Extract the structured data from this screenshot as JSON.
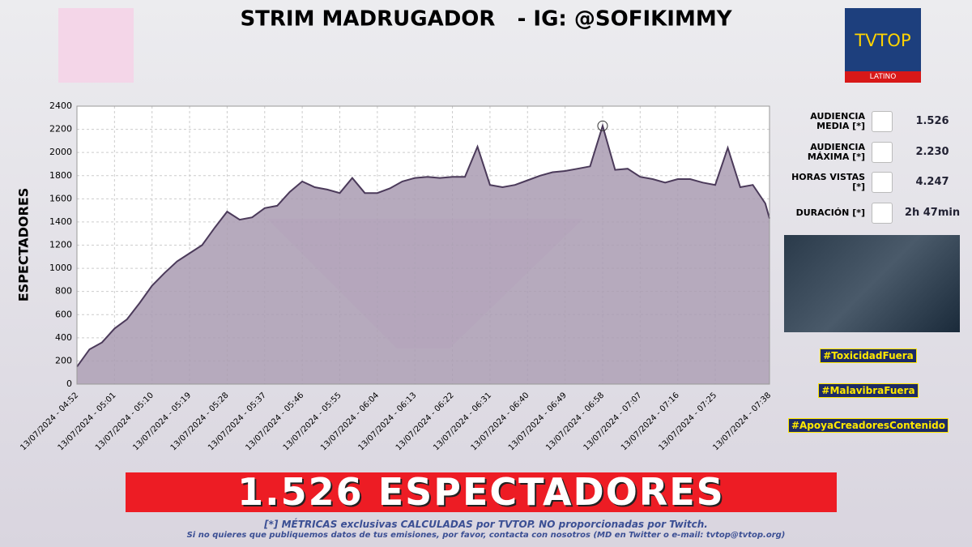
{
  "chart_data": {
    "type": "area",
    "title": "STRIM MADRUGADOR   - IG: @SOFIKIMMY",
    "y_label": "ESPECTADORES",
    "x": [
      "2024-07-13T04:52",
      "2024-07-13T04:55",
      "2024-07-13T04:58",
      "2024-07-13T05:01",
      "2024-07-13T05:04",
      "2024-07-13T05:07",
      "2024-07-13T05:10",
      "2024-07-13T05:13",
      "2024-07-13T05:16",
      "2024-07-13T05:19",
      "2024-07-13T05:22",
      "2024-07-13T05:25",
      "2024-07-13T05:28",
      "2024-07-13T05:31",
      "2024-07-13T05:34",
      "2024-07-13T05:37",
      "2024-07-13T05:40",
      "2024-07-13T05:43",
      "2024-07-13T05:46",
      "2024-07-13T05:49",
      "2024-07-13T05:52",
      "2024-07-13T05:55",
      "2024-07-13T05:58",
      "2024-07-13T06:01",
      "2024-07-13T06:04",
      "2024-07-13T06:07",
      "2024-07-13T06:10",
      "2024-07-13T06:13",
      "2024-07-13T06:16",
      "2024-07-13T06:19",
      "2024-07-13T06:22",
      "2024-07-13T06:25",
      "2024-07-13T06:28",
      "2024-07-13T06:31",
      "2024-07-13T06:34",
      "2024-07-13T06:37",
      "2024-07-13T06:40",
      "2024-07-13T06:43",
      "2024-07-13T06:46",
      "2024-07-13T06:49",
      "2024-07-13T06:52",
      "2024-07-13T06:55",
      "2024-07-13T06:58",
      "2024-07-13T07:01",
      "2024-07-13T07:04",
      "2024-07-13T07:07",
      "2024-07-13T07:10",
      "2024-07-13T07:13",
      "2024-07-13T07:16",
      "2024-07-13T07:19",
      "2024-07-13T07:22",
      "2024-07-13T07:25",
      "2024-07-13T07:28",
      "2024-07-13T07:31",
      "2024-07-13T07:34",
      "2024-07-13T07:37",
      "2024-07-13T07:38"
    ],
    "series": [
      {
        "name": "ESPECTADORES",
        "color": "#4b3a5a",
        "fill": "#a99bb2",
        "values": [
          150,
          300,
          360,
          480,
          560,
          700,
          850,
          960,
          1060,
          1130,
          1200,
          1350,
          1490,
          1420,
          1440,
          1520,
          1540,
          1660,
          1750,
          1700,
          1680,
          1650,
          1780,
          1650,
          1650,
          1690,
          1750,
          1780,
          1790,
          1780,
          1790,
          1790,
          2050,
          1720,
          1700,
          1720,
          1760,
          1800,
          1830,
          1840,
          1860,
          1880,
          2230,
          1850,
          1860,
          1790,
          1770,
          1740,
          1770,
          1770,
          1740,
          1720,
          2040,
          1700,
          1720,
          1560,
          1430
        ]
      }
    ],
    "xlim": [
      "2024-07-13T04:52",
      "2024-07-13T07:38"
    ],
    "xticks": [
      {
        "value": "2024-07-13T04:52",
        "label": "13/07/2024 - 04:52"
      },
      {
        "value": "2024-07-13T05:01",
        "label": "13/07/2024 - 05:01"
      },
      {
        "value": "2024-07-13T05:10",
        "label": "13/07/2024 - 05:10"
      },
      {
        "value": "2024-07-13T05:19",
        "label": "13/07/2024 - 05:19"
      },
      {
        "value": "2024-07-13T05:28",
        "label": "13/07/2024 - 05:28"
      },
      {
        "value": "2024-07-13T05:37",
        "label": "13/07/2024 - 05:37"
      },
      {
        "value": "2024-07-13T05:46",
        "label": "13/07/2024 - 05:46"
      },
      {
        "value": "2024-07-13T05:55",
        "label": "13/07/2024 - 05:55"
      },
      {
        "value": "2024-07-13T06:04",
        "label": "13/07/2024 - 06:04"
      },
      {
        "value": "2024-07-13T06:13",
        "label": "13/07/2024 - 06:13"
      },
      {
        "value": "2024-07-13T06:22",
        "label": "13/07/2024 - 06:22"
      },
      {
        "value": "2024-07-13T06:31",
        "label": "13/07/2024 - 06:31"
      },
      {
        "value": "2024-07-13T06:40",
        "label": "13/07/2024 - 06:40"
      },
      {
        "value": "2024-07-13T06:49",
        "label": "13/07/2024 - 06:49"
      },
      {
        "value": "2024-07-13T06:58",
        "label": "13/07/2024 - 06:58"
      },
      {
        "value": "2024-07-13T07:07",
        "label": "13/07/2024 - 07:07"
      },
      {
        "value": "2024-07-13T07:16",
        "label": "13/07/2024 - 07:16"
      },
      {
        "value": "2024-07-13T07:25",
        "label": "13/07/2024 - 07:25"
      },
      {
        "value": "2024-07-13T07:38",
        "label": "13/07/2024 - 07:38"
      }
    ],
    "ylim": [
      0,
      2400
    ],
    "yticks": [
      0,
      200,
      400,
      600,
      800,
      1000,
      1200,
      1400,
      1600,
      1800,
      2000,
      2200,
      2400
    ],
    "grid": true
  },
  "logo": {
    "name": "TVTOP",
    "region": "LATINO"
  },
  "stats": [
    {
      "label": "AUDIENCIA MEDIA [*]",
      "value": "1.526"
    },
    {
      "label": "AUDIENCIA MÁXIMA [*]",
      "value": "2.230"
    },
    {
      "label": "HORAS VISTAS [*]",
      "value": "4.247"
    },
    {
      "label": "DURACIÓN [*]",
      "value": "2h 47min"
    }
  ],
  "hashtags": [
    "#ToxicidadFuera",
    "#MalavibraFuera",
    "#ApoyaCreadoresContenido"
  ],
  "banner": "1.526 ESPECTADORES",
  "footer": [
    "[*] MÉTRICAS exclusivas CALCULADAS por TVTOP. NO proporcionadas por Twitch.",
    "Si no quieres que publiquemos datos de tus emisiones, por favor, contacta con nosotros (MD en Twitter o e-mail: tvtop@tvtop.org)"
  ]
}
